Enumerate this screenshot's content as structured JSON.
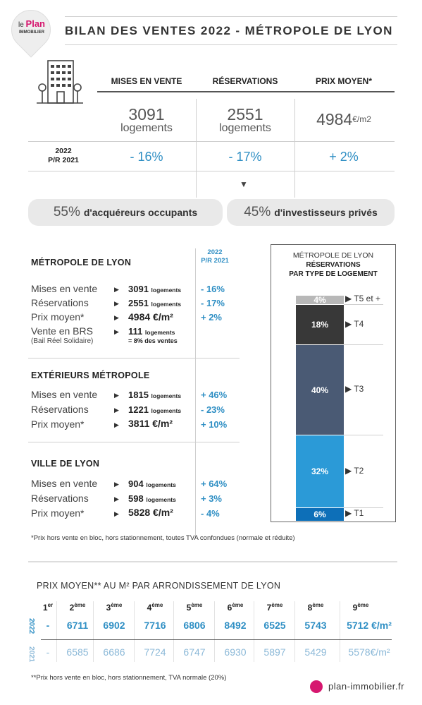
{
  "logo": {
    "le": "le",
    "plan": "Plan",
    "immobilier": "IMMOBILIER"
  },
  "title": "BILAN DES VENTES 2022 - MÉTROPOLE DE LYON",
  "summary": {
    "headers": [
      "MISES EN VENTE",
      "RÉSERVATIONS",
      "PRIX MOYEN*"
    ],
    "values": [
      "3091",
      "2551",
      "4984"
    ],
    "units": [
      "logements",
      "logements",
      "€/m2"
    ],
    "compare_label_1": "2022",
    "compare_label_2": "P/R 2021",
    "changes": [
      "- 16%",
      "- 17%",
      "+ 2%"
    ],
    "down_arrow": "▼"
  },
  "split": {
    "occupants_pct": "55%",
    "occupants_label": "d'acquéreurs occupants",
    "investors_pct": "45%",
    "investors_label": "d'investisseurs privés"
  },
  "detail": {
    "col_header_1": "2022",
    "col_header_2": "P/R 2021",
    "arrow": "▶",
    "sections": [
      {
        "title": "MÉTROPOLE DE LYON",
        "rows": [
          {
            "label": "Mises en vente",
            "value": "3091",
            "unit": "logements",
            "change": "- 16%"
          },
          {
            "label": "Réservations",
            "value": "2551",
            "unit": "logements",
            "change": "- 17%"
          },
          {
            "label": "Prix moyen*",
            "value": "4984 €/m²",
            "unit": "",
            "change": "+ 2%"
          },
          {
            "label": "Vente en BRS",
            "sub": "(Bail Réel Solidaire)",
            "value": "111",
            "unit": "logements",
            "unit2": "= 8% des ventes",
            "change": ""
          }
        ]
      },
      {
        "title": "EXTÉRIEURS MÉTROPOLE",
        "rows": [
          {
            "label": "Mises en vente",
            "value": "1815",
            "unit": "logements",
            "change": "+ 46%"
          },
          {
            "label": "Réservations",
            "value": "1221",
            "unit": "logements",
            "change": "- 23%"
          },
          {
            "label": "Prix moyen*",
            "value": "3811 €/m²",
            "unit": "",
            "change": "+ 10%"
          }
        ]
      },
      {
        "title": "VILLE DE LYON",
        "rows": [
          {
            "label": "Mises en vente",
            "value": "904",
            "unit": "logements",
            "change": "+ 64%"
          },
          {
            "label": "Réservations",
            "value": "598",
            "unit": "logements",
            "change": "+ 3%"
          },
          {
            "label": "Prix moyen*",
            "value": "5828 €/m²",
            "unit": "",
            "change": "- 4%"
          }
        ]
      }
    ],
    "footnote": "*Prix hors vente en bloc, hors stationnement, toutes TVA confondues (normale et réduite)"
  },
  "chart_data": {
    "type": "bar",
    "title": "MÉTROPOLE DE LYON",
    "subtitle_1": "RÉSERVATIONS",
    "subtitle_2": "PAR TYPE DE LOGEMENT",
    "stacked": true,
    "categories": [
      "T1",
      "T2",
      "T3",
      "T4",
      "T5 et +"
    ],
    "values": [
      6,
      32,
      40,
      18,
      4
    ],
    "value_labels": [
      "6%",
      "32%",
      "40%",
      "18%",
      "4%"
    ],
    "colors": [
      "#0d6fb8",
      "#2b9ad7",
      "#4a5a74",
      "#383838",
      "#b8b8b8"
    ],
    "arrow": "▶"
  },
  "arrondissements": {
    "title": "PRIX MOYEN** AU M² PAR ARRONDISSEMENT DE LYON",
    "numbers": [
      "1",
      "2",
      "3",
      "4",
      "5",
      "6",
      "7",
      "8",
      "9"
    ],
    "suffixes": [
      "er",
      "ème",
      "ème",
      "ème",
      "ème",
      "ème",
      "ème",
      "ème",
      "ème"
    ],
    "year_2022": "2022",
    "year_2021": "2021",
    "values_2022": [
      "-",
      "6711",
      "6902",
      "7716",
      "6806",
      "8492",
      "6525",
      "5743",
      "5712 €/m²"
    ],
    "values_2021": [
      "-",
      "6585",
      "6686",
      "7724",
      "6747",
      "6930",
      "5897",
      "5429",
      "5578€/m²"
    ],
    "footnote": "**Prix hors vente en bloc, hors stationnement, TVA normale (20%)"
  },
  "site": {
    "url": "plan-immobilier.fr",
    "dot_color": "#d6176f"
  }
}
